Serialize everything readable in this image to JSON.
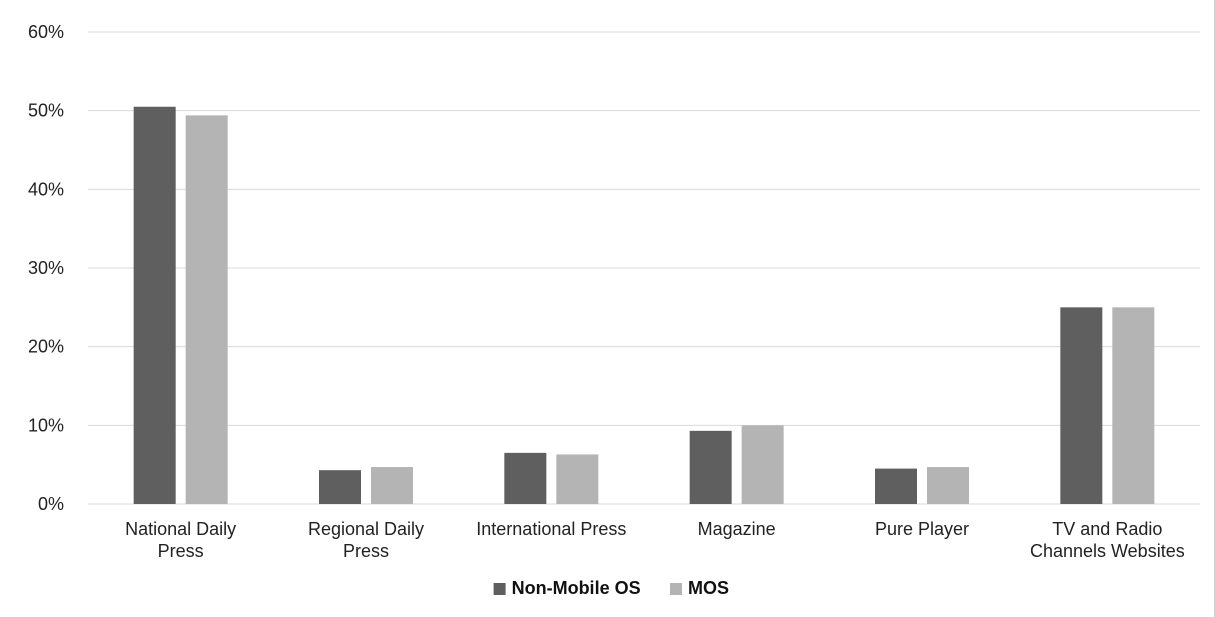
{
  "chart_data": {
    "type": "bar",
    "categories": [
      [
        "National Daily",
        "Press"
      ],
      [
        "Regional Daily",
        "Press"
      ],
      [
        "International Press"
      ],
      [
        "Magazine"
      ],
      [
        "Pure Player"
      ],
      [
        "TV and Radio",
        "Channels Websites"
      ]
    ],
    "series": [
      {
        "name": "Non-Mobile OS",
        "color": "#5f5f5f",
        "values": [
          0.505,
          0.043,
          0.065,
          0.093,
          0.045,
          0.25
        ]
      },
      {
        "name": "MOS",
        "color": "#b4b4b4",
        "values": [
          0.494,
          0.047,
          0.063,
          0.1,
          0.047,
          0.25
        ]
      }
    ],
    "y_ticks": [
      "0%",
      "10%",
      "20%",
      "30%",
      "40%",
      "50%",
      "60%"
    ],
    "ylim": [
      0,
      0.6
    ],
    "grid": true,
    "gridline_color": "#d9d9d9",
    "legend_position": "bottom",
    "title": "",
    "xlabel": "",
    "ylabel": ""
  }
}
